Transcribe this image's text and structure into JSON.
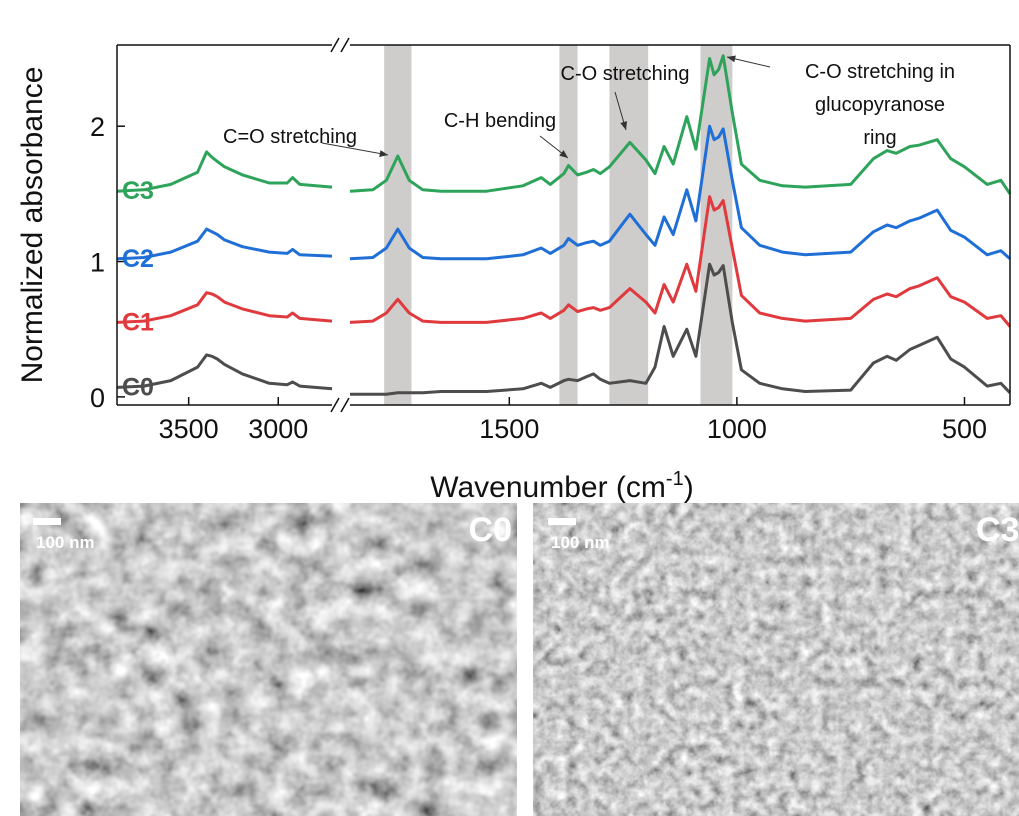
{
  "chart_data": [
    {
      "type": "line",
      "ylabel": "Normalized absorbance",
      "x": [
        3900,
        3750,
        3600,
        3450,
        3400,
        3370,
        3340,
        3300,
        3200,
        3050,
        2950,
        2920,
        2880,
        2700
      ],
      "xlim": [
        3900,
        2700
      ],
      "xticks": [
        3500,
        3000
      ],
      "ylim": [
        -0.06,
        2.6
      ],
      "yticks": [
        0,
        1,
        2
      ],
      "series": [
        {
          "name": "C0",
          "color": "#4d4d4d",
          "values": [
            0.07,
            0.08,
            0.12,
            0.22,
            0.31,
            0.3,
            0.28,
            0.24,
            0.17,
            0.1,
            0.09,
            0.11,
            0.08,
            0.06
          ]
        },
        {
          "name": "C1",
          "color": "#e03a3e",
          "values": [
            0.55,
            0.56,
            0.6,
            0.68,
            0.77,
            0.76,
            0.74,
            0.7,
            0.65,
            0.6,
            0.59,
            0.62,
            0.58,
            0.56
          ]
        },
        {
          "name": "C2",
          "color": "#1f6fd6",
          "values": [
            1.02,
            1.03,
            1.07,
            1.15,
            1.24,
            1.22,
            1.2,
            1.16,
            1.11,
            1.07,
            1.06,
            1.09,
            1.05,
            1.04
          ]
        },
        {
          "name": "C3",
          "color": "#2ea35a",
          "values": [
            1.52,
            1.53,
            1.57,
            1.66,
            1.81,
            1.77,
            1.74,
            1.7,
            1.64,
            1.58,
            1.58,
            1.62,
            1.57,
            1.55
          ]
        }
      ]
    },
    {
      "type": "line",
      "xlabel": {
        "text": "Wavenumber (cm",
        "superscript": "-1",
        "suffix": ")"
      },
      "x": [
        1850,
        1800,
        1770,
        1745,
        1720,
        1690,
        1650,
        1550,
        1470,
        1430,
        1410,
        1380,
        1370,
        1350,
        1330,
        1315,
        1300,
        1280,
        1235,
        1200,
        1180,
        1160,
        1140,
        1110,
        1090,
        1060,
        1050,
        1040,
        1030,
        1010,
        990,
        950,
        900,
        850,
        750,
        700,
        670,
        650,
        620,
        600,
        560,
        530,
        500,
        450,
        420,
        400
      ],
      "xlim": [
        1850,
        400
      ],
      "xticks": [
        1500,
        1000,
        500
      ],
      "ylim": [
        -0.06,
        2.6
      ],
      "series": [
        {
          "color": "#4d4d4d",
          "values": [
            0.02,
            0.02,
            0.02,
            0.03,
            0.03,
            0.03,
            0.04,
            0.04,
            0.06,
            0.1,
            0.07,
            0.12,
            0.13,
            0.12,
            0.15,
            0.17,
            0.13,
            0.1,
            0.12,
            0.1,
            0.22,
            0.52,
            0.3,
            0.5,
            0.3,
            0.98,
            0.9,
            0.92,
            0.97,
            0.55,
            0.2,
            0.1,
            0.06,
            0.04,
            0.05,
            0.25,
            0.3,
            0.27,
            0.35,
            0.38,
            0.44,
            0.28,
            0.22,
            0.08,
            0.1,
            0.03
          ]
        },
        {
          "color": "#e03a3e",
          "values": [
            0.55,
            0.56,
            0.62,
            0.72,
            0.62,
            0.56,
            0.55,
            0.55,
            0.58,
            0.62,
            0.58,
            0.64,
            0.68,
            0.63,
            0.65,
            0.66,
            0.64,
            0.66,
            0.8,
            0.7,
            0.62,
            0.83,
            0.7,
            0.98,
            0.78,
            1.48,
            1.38,
            1.4,
            1.45,
            1.1,
            0.75,
            0.62,
            0.58,
            0.56,
            0.58,
            0.72,
            0.76,
            0.74,
            0.8,
            0.82,
            0.88,
            0.74,
            0.7,
            0.58,
            0.6,
            0.52
          ]
        },
        {
          "color": "#1f6fd6",
          "values": [
            1.02,
            1.03,
            1.1,
            1.24,
            1.1,
            1.03,
            1.02,
            1.02,
            1.05,
            1.1,
            1.06,
            1.12,
            1.17,
            1.12,
            1.14,
            1.15,
            1.12,
            1.15,
            1.35,
            1.2,
            1.12,
            1.33,
            1.2,
            1.53,
            1.3,
            2.0,
            1.9,
            1.92,
            1.98,
            1.6,
            1.25,
            1.12,
            1.07,
            1.05,
            1.07,
            1.22,
            1.27,
            1.25,
            1.3,
            1.32,
            1.38,
            1.23,
            1.18,
            1.05,
            1.08,
            1.02
          ]
        },
        {
          "color": "#2ea35a",
          "values": [
            1.52,
            1.53,
            1.6,
            1.78,
            1.6,
            1.53,
            1.52,
            1.52,
            1.56,
            1.62,
            1.57,
            1.65,
            1.71,
            1.64,
            1.66,
            1.68,
            1.65,
            1.7,
            1.88,
            1.75,
            1.65,
            1.85,
            1.72,
            2.07,
            1.83,
            2.5,
            2.38,
            2.42,
            2.52,
            2.1,
            1.72,
            1.6,
            1.56,
            1.55,
            1.57,
            1.76,
            1.82,
            1.8,
            1.85,
            1.86,
            1.9,
            1.76,
            1.7,
            1.57,
            1.6,
            1.5
          ]
        }
      ],
      "bands": [
        [
          1775,
          1715
        ],
        [
          1390,
          1350
        ],
        [
          1280,
          1195
        ],
        [
          1080,
          1010
        ]
      ],
      "annotations": [
        {
          "lines": [
            "C=O stretching"
          ]
        },
        {
          "lines": [
            "C-H bending"
          ]
        },
        {
          "lines": [
            "C-O stretching"
          ]
        },
        {
          "lines": [
            "C-O stretching in",
            "glucopyranose",
            "ring"
          ]
        }
      ]
    }
  ],
  "images": [
    {
      "scale_label": "100 nm",
      "label": "C0"
    },
    {
      "scale_label": "100 nm",
      "label": "C3"
    }
  ]
}
